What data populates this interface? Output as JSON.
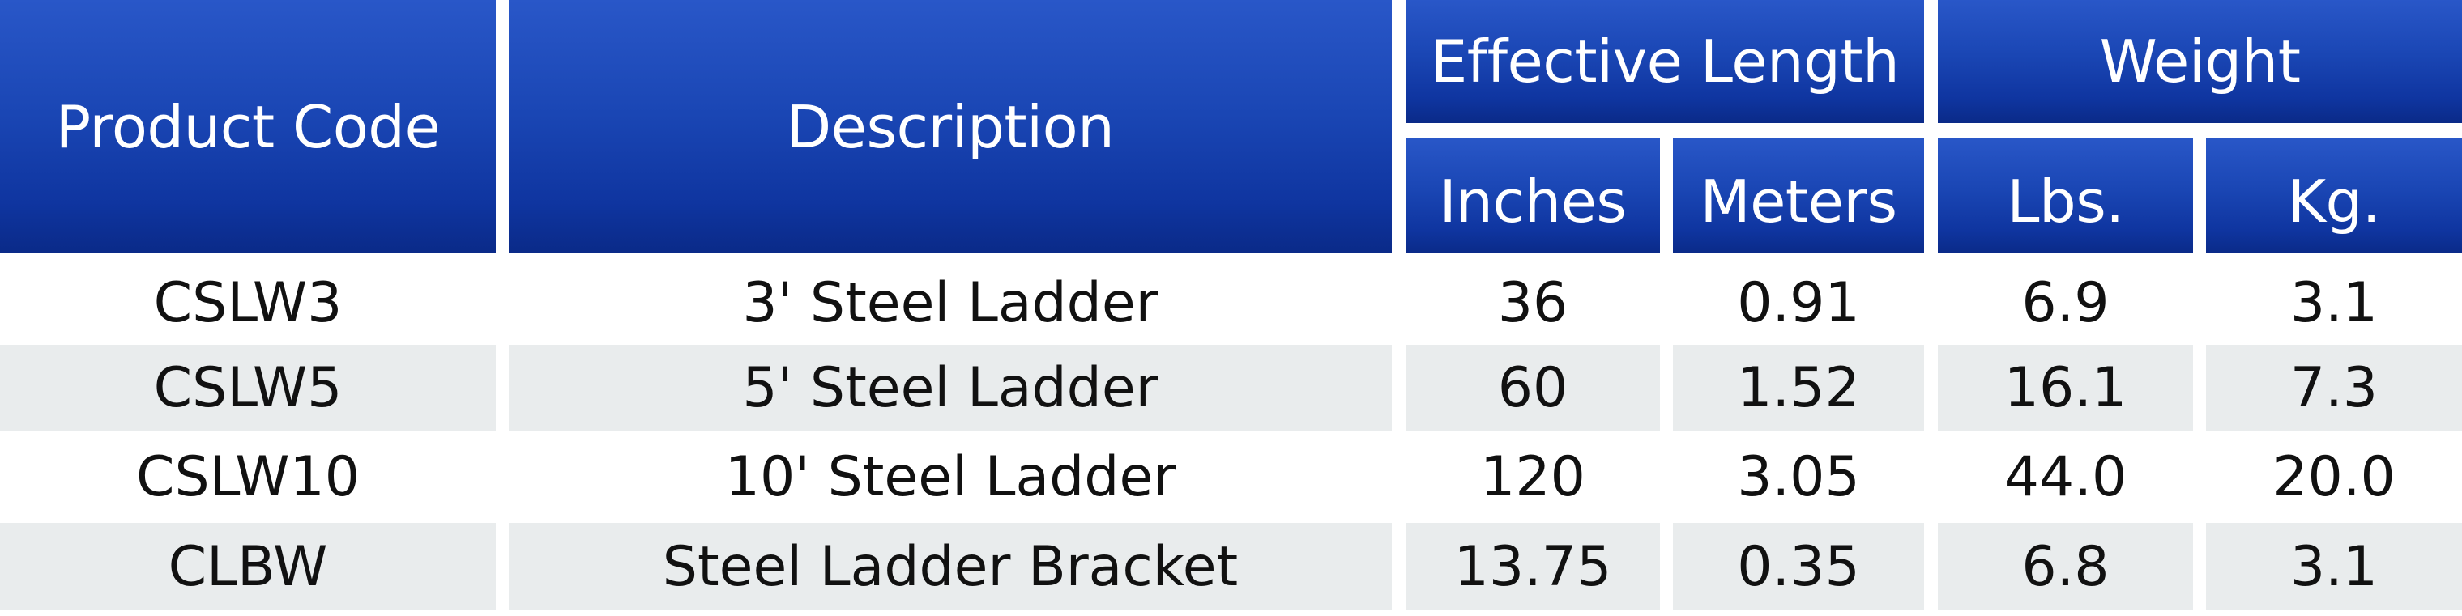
{
  "table": {
    "headers": {
      "product_code": "Product Code",
      "description": "Description",
      "effective_length": "Effective Length",
      "weight": "Weight",
      "inches": "Inches",
      "meters": "Meters",
      "lbs": "Lbs.",
      "kg": "Kg."
    },
    "rows": [
      {
        "code": "CSLW3",
        "description": "3' Steel Ladder",
        "inches": "36",
        "meters": "0.91",
        "lbs": "6.9",
        "kg": "3.1"
      },
      {
        "code": "CSLW5",
        "description": "5' Steel Ladder",
        "inches": "60",
        "meters": "1.52",
        "lbs": "16.1",
        "kg": "7.3"
      },
      {
        "code": "CSLW10",
        "description": "10' Steel Ladder",
        "inches": "120",
        "meters": "3.05",
        "lbs": "44.0",
        "kg": "20.0"
      },
      {
        "code": "CLBW",
        "description": "Steel Ladder Bracket",
        "inches": "13.75",
        "meters": "0.35",
        "lbs": "6.8",
        "kg": "3.1"
      }
    ],
    "colors": {
      "header_top": "#2957c8",
      "header_bottom": "#0a2a88",
      "header_text": "#ffffff",
      "alt_row_bg": "#e9eced",
      "row_text": "#111111"
    }
  }
}
